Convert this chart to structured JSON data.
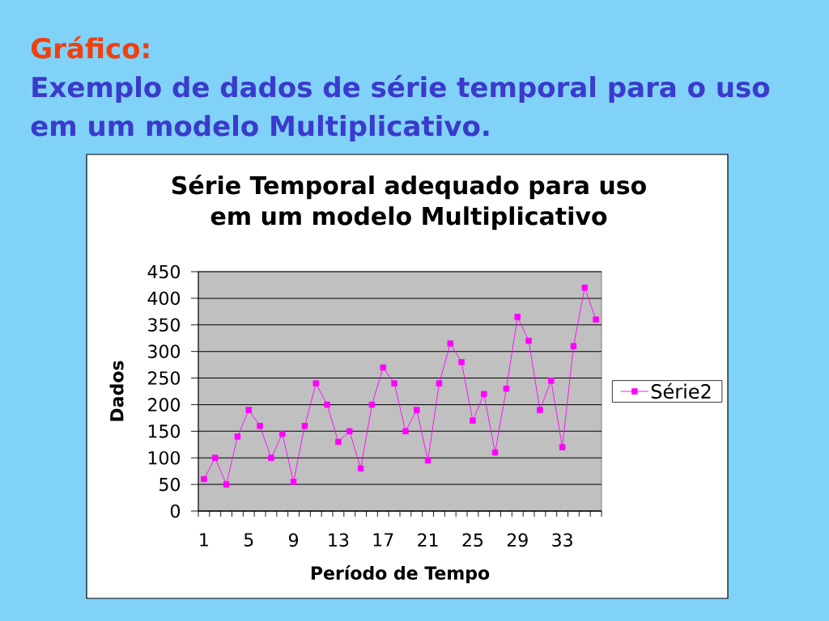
{
  "chart_data": {
    "type": "line",
    "title": "Série Temporal adequado para uso em um modelo Multiplicativo",
    "xlabel": "Período de Tempo",
    "ylabel": "Dados",
    "annotations": [
      "Gráfico:",
      "Exemplo de dados de série temporal para o uso em um modelo Multiplicativo."
    ],
    "categories": [
      "1",
      null,
      null,
      null,
      "5",
      null,
      null,
      null,
      "9",
      null,
      null,
      null,
      "13",
      null,
      null,
      null,
      "17",
      null,
      null,
      null,
      "21",
      null,
      null,
      null,
      "25",
      null,
      null,
      null,
      "29",
      null,
      null,
      null,
      "33",
      null,
      null,
      null
    ],
    "series": [
      {
        "name": "Série2",
        "color": "#ff00ff",
        "values": [
          60,
          100,
          50,
          140,
          190,
          160,
          100,
          145,
          55,
          160,
          240,
          200,
          130,
          150,
          80,
          200,
          270,
          240,
          150,
          190,
          95,
          240,
          315,
          280,
          170,
          220,
          110,
          230,
          365,
          320,
          190,
          245,
          120,
          310,
          420,
          360
        ]
      }
    ],
    "ylim": [
      0,
      450
    ],
    "yticks": [
      0,
      50,
      100,
      150,
      200,
      250,
      300,
      350,
      400,
      450
    ],
    "grid": "y",
    "legend": "right",
    "marker": "square",
    "line_style": "solid"
  }
}
